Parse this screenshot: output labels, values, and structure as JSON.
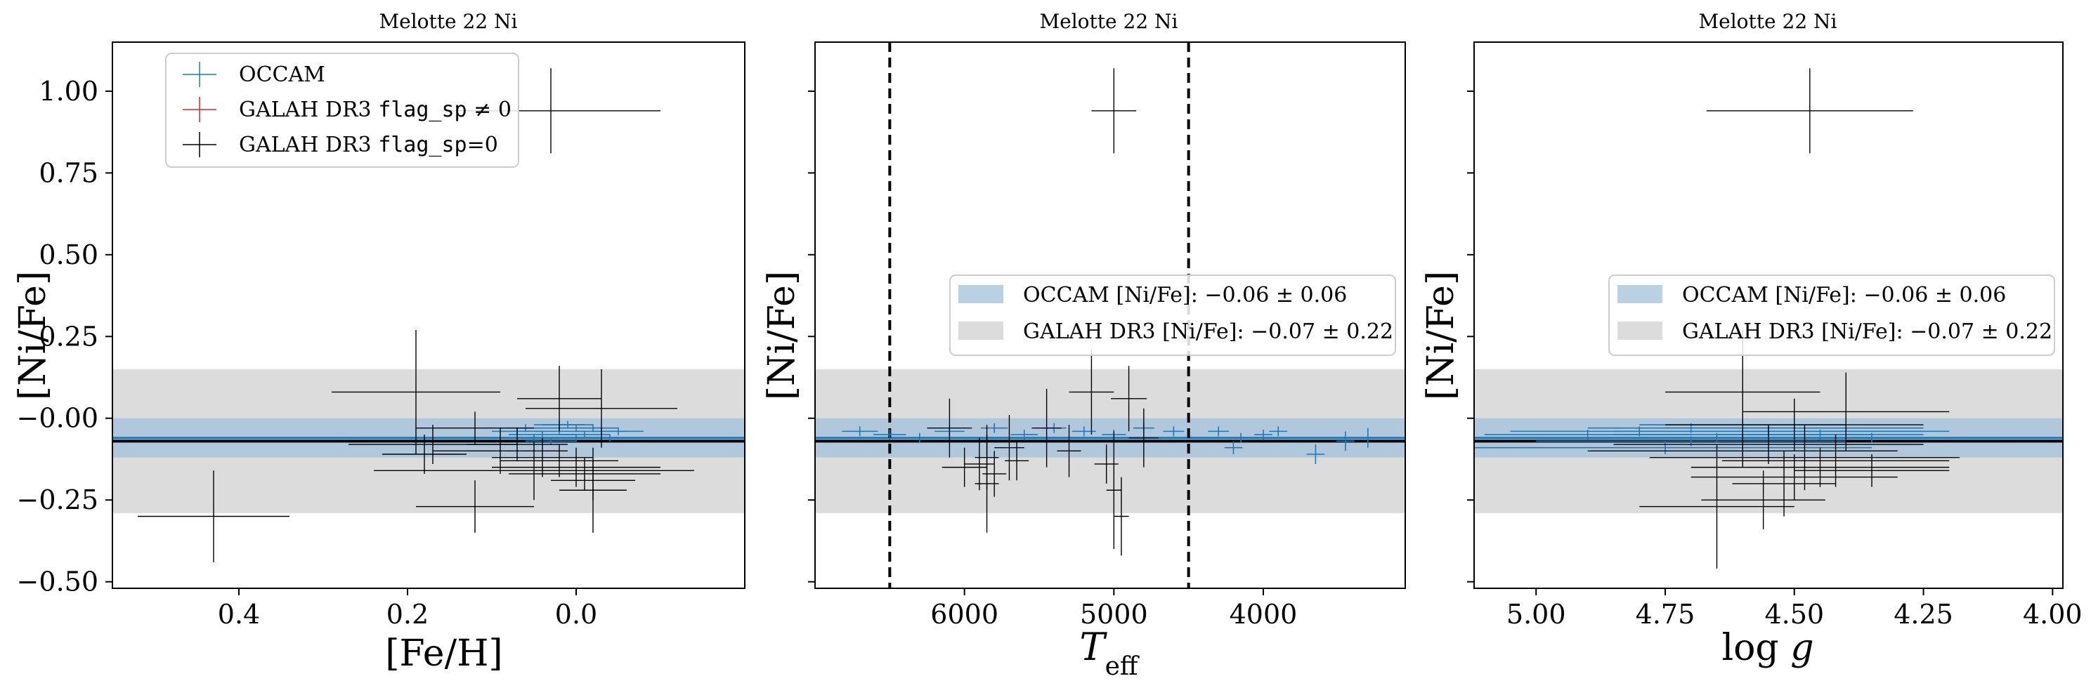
{
  "figure": {
    "bands": {
      "occam": {
        "mean": -0.06,
        "std": 0.06,
        "color": "#a9c4dc"
      },
      "galah": {
        "mean": -0.07,
        "std": 0.22,
        "color": "#dcdcdc"
      }
    },
    "colors": {
      "occam": "#1f77b4",
      "galah_flag": "#d62728",
      "galah_ok": "#000000"
    }
  },
  "chart_data": [
    {
      "type": "scatter",
      "title": "Melotte 22 Ni",
      "xlabel": "[Fe/H]",
      "ylabel": "[Ni/Fe]",
      "xlim": [
        0.55,
        -0.2
      ],
      "ylim": [
        -0.52,
        1.15
      ],
      "xticks": [
        {
          "v": 0.4,
          "label": "0.4"
        },
        {
          "v": 0.2,
          "label": "0.2"
        },
        {
          "v": 0.0,
          "label": "0.0"
        }
      ],
      "yticks": [
        {
          "v": 1.0,
          "label": "1.00"
        },
        {
          "v": 0.75,
          "label": "0.75"
        },
        {
          "v": 0.5,
          "label": "0.50"
        },
        {
          "v": 0.25,
          "label": "0.25"
        },
        {
          "v": 0.0,
          "label": "−0.00"
        },
        {
          "v": -0.25,
          "label": "−0.25"
        },
        {
          "v": -0.5,
          "label": "−0.50"
        }
      ],
      "legend": {
        "placement": "upper-left",
        "entries": [
          {
            "label": "OCCAM",
            "mono": "",
            "suffix": "",
            "color": "#1f77b4"
          },
          {
            "label": "GALAH DR3 ",
            "mono": "flag_sp",
            "suffix": " ≠ 0",
            "color": "#d62728"
          },
          {
            "label": "GALAH DR3 ",
            "mono": "flag_sp",
            "suffix": "=0",
            "color": "#000000"
          }
        ]
      },
      "series": [
        {
          "name": "OCCAM",
          "points": [
            {
              "x": 0.06,
              "y": -0.03,
              "xerr": 0.03,
              "yerr": 0.012
            },
            {
              "x": 0.04,
              "y": -0.05,
              "xerr": 0.04,
              "yerr": 0.012
            },
            {
              "x": 0.02,
              "y": -0.04,
              "xerr": 0.03,
              "yerr": 0.012
            },
            {
              "x": 0.0,
              "y": -0.03,
              "xerr": 0.03,
              "yerr": 0.012
            },
            {
              "x": -0.01,
              "y": -0.05,
              "xerr": 0.03,
              "yerr": 0.012
            },
            {
              "x": -0.03,
              "y": -0.04,
              "xerr": 0.03,
              "yerr": 0.012
            },
            {
              "x": 0.05,
              "y": -0.06,
              "xerr": 0.03,
              "yerr": 0.012
            },
            {
              "x": 0.01,
              "y": -0.02,
              "xerr": 0.03,
              "yerr": 0.012
            },
            {
              "x": -0.02,
              "y": -0.03,
              "xerr": 0.03,
              "yerr": 0.012
            },
            {
              "x": 0.03,
              "y": -0.07,
              "xerr": 0.03,
              "yerr": 0.012
            },
            {
              "x": -0.04,
              "y": -0.06,
              "xerr": 0.03,
              "yerr": 0.012
            },
            {
              "x": 0.07,
              "y": -0.04,
              "xerr": 0.03,
              "yerr": 0.012
            },
            {
              "x": 0.0,
              "y": -0.06,
              "xerr": 0.03,
              "yerr": 0.012
            },
            {
              "x": -0.05,
              "y": -0.04,
              "xerr": 0.03,
              "yerr": 0.012
            },
            {
              "x": 0.02,
              "y": -0.02,
              "xerr": 0.03,
              "yerr": 0.012
            }
          ]
        },
        {
          "name": "GALAH DR3 flag_sp=0",
          "points": [
            {
              "x": 0.03,
              "y": 0.94,
              "xerr": 0.13,
              "yerr": 0.13
            },
            {
              "x": 0.43,
              "y": -0.3,
              "xerr": 0.09,
              "yerr": 0.14
            },
            {
              "x": 0.19,
              "y": 0.08,
              "xerr": 0.1,
              "yerr": 0.19
            },
            {
              "x": 0.17,
              "y": -0.08,
              "xerr": 0.1,
              "yerr": 0.06
            },
            {
              "x": 0.12,
              "y": -0.03,
              "xerr": 0.07,
              "yerr": 0.05
            },
            {
              "x": 0.12,
              "y": -0.27,
              "xerr": 0.07,
              "yerr": 0.08
            },
            {
              "x": 0.07,
              "y": -0.08,
              "xerr": 0.06,
              "yerr": 0.05
            },
            {
              "x": 0.02,
              "y": 0.06,
              "xerr": 0.05,
              "yerr": 0.1
            },
            {
              "x": -0.03,
              "y": 0.03,
              "xerr": 0.09,
              "yerr": 0.12
            },
            {
              "x": -0.02,
              "y": -0.22,
              "xerr": 0.04,
              "yerr": 0.13
            },
            {
              "x": 0.05,
              "y": -0.16,
              "xerr": 0.19,
              "yerr": 0.09
            },
            {
              "x": 0.0,
              "y": -0.15,
              "xerr": 0.1,
              "yerr": 0.06
            },
            {
              "x": -0.01,
              "y": -0.17,
              "xerr": 0.09,
              "yerr": 0.05
            },
            {
              "x": 0.02,
              "y": -0.13,
              "xerr": 0.07,
              "yerr": 0.05
            },
            {
              "x": 0.04,
              "y": -0.12,
              "xerr": 0.06,
              "yerr": 0.06
            },
            {
              "x": 0.09,
              "y": -0.1,
              "xerr": 0.08,
              "yerr": 0.07
            },
            {
              "x": 0.18,
              "y": -0.11,
              "xerr": 0.05,
              "yerr": 0.06
            },
            {
              "x": -0.02,
              "y": -0.19,
              "xerr": 0.05,
              "yerr": 0.06
            }
          ]
        }
      ]
    },
    {
      "type": "scatter",
      "title": "Melotte 22 Ni",
      "xlabel": "T_eff",
      "ylabel": "[Ni/Fe]",
      "xlim": [
        7000,
        3050
      ],
      "ylim": [
        -0.52,
        1.15
      ],
      "xticks": [
        {
          "v": 6000,
          "label": "6000"
        },
        {
          "v": 5000,
          "label": "5000"
        },
        {
          "v": 4000,
          "label": "4000"
        }
      ],
      "yticks": [
        {
          "v": 1.0,
          "label": ""
        },
        {
          "v": 0.75,
          "label": ""
        },
        {
          "v": 0.5,
          "label": ""
        },
        {
          "v": 0.25,
          "label": ""
        },
        {
          "v": 0.0,
          "label": ""
        },
        {
          "v": -0.25,
          "label": ""
        },
        {
          "v": -0.5,
          "label": ""
        }
      ],
      "vlines": [
        6500,
        4500
      ],
      "legend": {
        "placement": "center-right",
        "entries": [
          {
            "label": "OCCAM [Ni/Fe]: −0.06 ± 0.06",
            "color": "#a9c4dc"
          },
          {
            "label": "GALAH DR3 [Ni/Fe]: −0.07 ± 0.22",
            "color": "#dcdcdc"
          }
        ]
      },
      "series": [
        {
          "name": "OCCAM",
          "points": [
            {
              "x": 6700,
              "y": -0.04,
              "xerr": 120,
              "yerr": 0.015
            },
            {
              "x": 6500,
              "y": -0.05,
              "xerr": 110,
              "yerr": 0.015
            },
            {
              "x": 6300,
              "y": -0.06,
              "xerr": 100,
              "yerr": 0.015
            },
            {
              "x": 6100,
              "y": -0.04,
              "xerr": 100,
              "yerr": 0.015
            },
            {
              "x": 5800,
              "y": -0.03,
              "xerr": 90,
              "yerr": 0.015
            },
            {
              "x": 5600,
              "y": -0.05,
              "xerr": 90,
              "yerr": 0.015
            },
            {
              "x": 5400,
              "y": -0.03,
              "xerr": 80,
              "yerr": 0.015
            },
            {
              "x": 5200,
              "y": -0.04,
              "xerr": 80,
              "yerr": 0.015
            },
            {
              "x": 5000,
              "y": -0.05,
              "xerr": 80,
              "yerr": 0.015
            },
            {
              "x": 4800,
              "y": -0.03,
              "xerr": 70,
              "yerr": 0.015
            },
            {
              "x": 4600,
              "y": -0.04,
              "xerr": 70,
              "yerr": 0.015
            },
            {
              "x": 4300,
              "y": -0.04,
              "xerr": 70,
              "yerr": 0.015
            },
            {
              "x": 4150,
              "y": -0.06,
              "xerr": 60,
              "yerr": 0.015
            },
            {
              "x": 4000,
              "y": -0.05,
              "xerr": 60,
              "yerr": 0.015
            },
            {
              "x": 3900,
              "y": -0.04,
              "xerr": 60,
              "yerr": 0.015
            },
            {
              "x": 3650,
              "y": -0.11,
              "xerr": 60,
              "yerr": 0.03
            },
            {
              "x": 3450,
              "y": -0.07,
              "xerr": 60,
              "yerr": 0.03
            },
            {
              "x": 3300,
              "y": -0.06,
              "xerr": 60,
              "yerr": 0.03
            },
            {
              "x": 4200,
              "y": -0.09,
              "xerr": 60,
              "yerr": 0.02
            }
          ]
        },
        {
          "name": "GALAH DR3 flag_sp=0",
          "points": [
            {
              "x": 5000,
              "y": 0.94,
              "xerr": 150,
              "yerr": 0.13
            },
            {
              "x": 6100,
              "y": -0.03,
              "xerr": 150,
              "yerr": 0.09
            },
            {
              "x": 6000,
              "y": -0.15,
              "xerr": 150,
              "yerr": 0.06
            },
            {
              "x": 5900,
              "y": -0.14,
              "xerr": 100,
              "yerr": 0.08
            },
            {
              "x": 5850,
              "y": -0.2,
              "xerr": 80,
              "yerr": 0.15
            },
            {
              "x": 5850,
              "y": -0.12,
              "xerr": 80,
              "yerr": 0.1
            },
            {
              "x": 5800,
              "y": -0.17,
              "xerr": 80,
              "yerr": 0.07
            },
            {
              "x": 5700,
              "y": -0.09,
              "xerr": 100,
              "yerr": 0.1
            },
            {
              "x": 5650,
              "y": -0.13,
              "xerr": 80,
              "yerr": 0.06
            },
            {
              "x": 5450,
              "y": -0.03,
              "xerr": 100,
              "yerr": 0.12
            },
            {
              "x": 5300,
              "y": -0.1,
              "xerr": 80,
              "yerr": 0.08
            },
            {
              "x": 5150,
              "y": 0.08,
              "xerr": 150,
              "yerr": 0.13
            },
            {
              "x": 5050,
              "y": -0.14,
              "xerr": 80,
              "yerr": 0.06
            },
            {
              "x": 5000,
              "y": -0.22,
              "xerr": 50,
              "yerr": 0.18
            },
            {
              "x": 4950,
              "y": -0.3,
              "xerr": 50,
              "yerr": 0.12
            },
            {
              "x": 4900,
              "y": 0.06,
              "xerr": 120,
              "yerr": 0.1
            },
            {
              "x": 4800,
              "y": -0.06,
              "xerr": 100,
              "yerr": 0.09
            }
          ]
        }
      ]
    },
    {
      "type": "scatter",
      "title": "Melotte 22 Ni",
      "xlabel": "log g",
      "ylabel": "[Ni/Fe]",
      "xlim": [
        5.12,
        3.98
      ],
      "ylim": [
        -0.52,
        1.15
      ],
      "xticks": [
        {
          "v": 5.0,
          "label": "5.00"
        },
        {
          "v": 4.75,
          "label": "4.75"
        },
        {
          "v": 4.5,
          "label": "4.50"
        },
        {
          "v": 4.25,
          "label": "4.25"
        },
        {
          "v": 4.0,
          "label": "4.00"
        }
      ],
      "yticks": [
        {
          "v": 1.0,
          "label": ""
        },
        {
          "v": 0.75,
          "label": ""
        },
        {
          "v": 0.5,
          "label": ""
        },
        {
          "v": 0.25,
          "label": ""
        },
        {
          "v": 0.0,
          "label": ""
        },
        {
          "v": -0.25,
          "label": ""
        },
        {
          "v": -0.5,
          "label": ""
        }
      ],
      "legend": {
        "placement": "center-right",
        "entries": [
          {
            "label": "OCCAM [Ni/Fe]: −0.06 ± 0.06",
            "color": "#a9c4dc"
          },
          {
            "label": "GALAH DR3 [Ni/Fe]: −0.07 ± 0.22",
            "color": "#dcdcdc"
          }
        ]
      },
      "series": [
        {
          "name": "OCCAM",
          "points": [
            {
              "x": 4.9,
              "y": -0.05,
              "xerr": 0.2,
              "yerr": 0.015
            },
            {
              "x": 4.8,
              "y": -0.04,
              "xerr": 0.25,
              "yerr": 0.015
            },
            {
              "x": 4.7,
              "y": -0.03,
              "xerr": 0.2,
              "yerr": 0.015
            },
            {
              "x": 4.65,
              "y": -0.06,
              "xerr": 0.2,
              "yerr": 0.015
            },
            {
              "x": 4.6,
              "y": -0.05,
              "xerr": 0.25,
              "yerr": 0.015
            },
            {
              "x": 4.55,
              "y": -0.04,
              "xerr": 0.3,
              "yerr": 0.015
            },
            {
              "x": 4.5,
              "y": -0.03,
              "xerr": 0.25,
              "yerr": 0.015
            },
            {
              "x": 4.45,
              "y": -0.05,
              "xerr": 0.2,
              "yerr": 0.015
            },
            {
              "x": 4.4,
              "y": -0.04,
              "xerr": 0.2,
              "yerr": 0.015
            },
            {
              "x": 4.35,
              "y": -0.06,
              "xerr": 0.25,
              "yerr": 0.015
            },
            {
              "x": 4.7,
              "y": -0.07,
              "xerr": 0.3,
              "yerr": 0.015
            },
            {
              "x": 4.6,
              "y": -0.02,
              "xerr": 0.2,
              "yerr": 0.015
            },
            {
              "x": 4.75,
              "y": -0.09,
              "xerr": 0.4,
              "yerr": 0.02
            }
          ]
        },
        {
          "name": "GALAH DR3 flag_sp=0",
          "points": [
            {
              "x": 4.47,
              "y": 0.94,
              "xerr": 0.2,
              "yerr": 0.13
            },
            {
              "x": 4.6,
              "y": 0.08,
              "xerr": 0.15,
              "yerr": 0.19
            },
            {
              "x": 4.5,
              "y": -0.02,
              "xerr": 0.25,
              "yerr": 0.08
            },
            {
              "x": 4.55,
              "y": -0.08,
              "xerr": 0.3,
              "yerr": 0.06
            },
            {
              "x": 4.4,
              "y": 0.02,
              "xerr": 0.2,
              "yerr": 0.12
            },
            {
              "x": 4.48,
              "y": -0.12,
              "xerr": 0.3,
              "yerr": 0.1
            },
            {
              "x": 4.45,
              "y": -0.15,
              "xerr": 0.25,
              "yerr": 0.06
            },
            {
              "x": 4.5,
              "y": -0.18,
              "xerr": 0.2,
              "yerr": 0.07
            },
            {
              "x": 4.42,
              "y": -0.13,
              "xerr": 0.22,
              "yerr": 0.08
            },
            {
              "x": 4.65,
              "y": -0.27,
              "xerr": 0.15,
              "yerr": 0.19
            },
            {
              "x": 4.56,
              "y": -0.25,
              "xerr": 0.12,
              "yerr": 0.09
            },
            {
              "x": 4.52,
              "y": -0.2,
              "xerr": 0.1,
              "yerr": 0.1
            },
            {
              "x": 4.35,
              "y": -0.16,
              "xerr": 0.15,
              "yerr": 0.05
            },
            {
              "x": 4.6,
              "y": -0.1,
              "xerr": 0.3,
              "yerr": 0.05
            }
          ]
        }
      ]
    }
  ]
}
